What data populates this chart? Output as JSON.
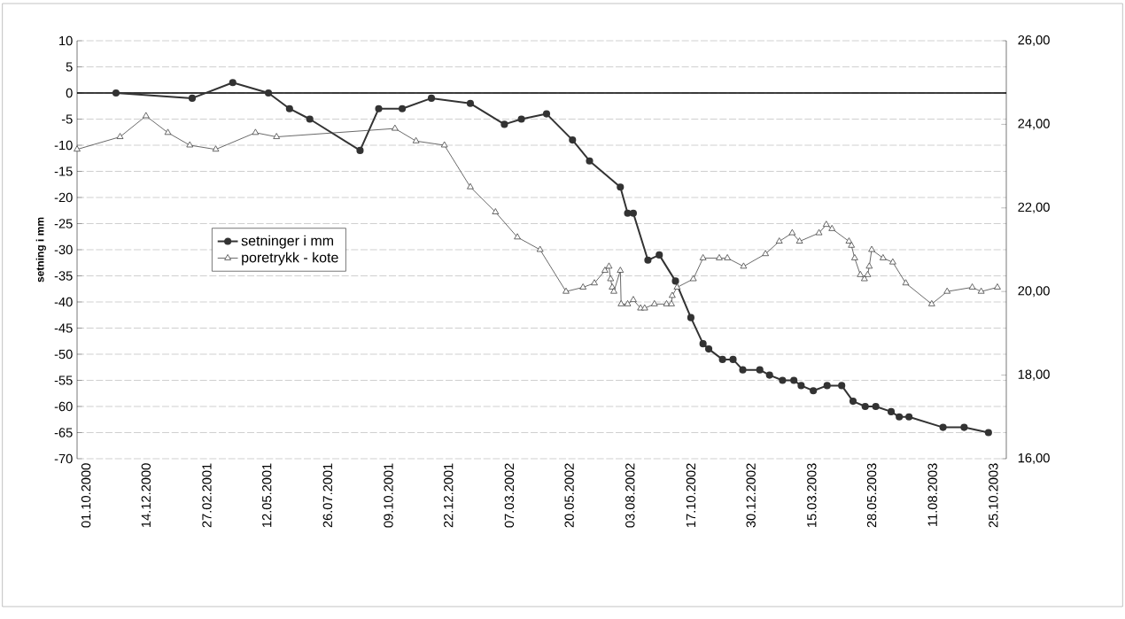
{
  "chart_data": {
    "type": "line",
    "ylabel": "setning i mm",
    "xlim": [
      "2000-09-20",
      "2003-11-10"
    ],
    "xticks": [
      {
        "value": "2000-10-01",
        "label": "01.10.2000"
      },
      {
        "value": "2000-12-14",
        "label": "14.12.2000"
      },
      {
        "value": "2001-02-27",
        "label": "27.02.2001"
      },
      {
        "value": "2001-05-12",
        "label": "12.05.2001"
      },
      {
        "value": "2001-07-26",
        "label": "26.07.2001"
      },
      {
        "value": "2001-10-09",
        "label": "09.10.2001"
      },
      {
        "value": "2001-12-22",
        "label": "22.12.2001"
      },
      {
        "value": "2002-03-07",
        "label": "07.03.2002"
      },
      {
        "value": "2002-05-20",
        "label": "20.05.2002"
      },
      {
        "value": "2002-08-03",
        "label": "03.08.2002"
      },
      {
        "value": "2002-10-17",
        "label": "17.10.2002"
      },
      {
        "value": "2002-12-30",
        "label": "30.12.2002"
      },
      {
        "value": "2003-03-15",
        "label": "15.03.2003"
      },
      {
        "value": "2003-05-28",
        "label": "28.05.2003"
      },
      {
        "value": "2003-08-11",
        "label": "11.08.2003"
      },
      {
        "value": "2003-10-25",
        "label": "25.10.2003"
      }
    ],
    "ylim": [
      -70,
      10
    ],
    "yticks": [
      -70,
      -65,
      -60,
      -55,
      -50,
      -45,
      -40,
      -35,
      -30,
      -25,
      -20,
      -15,
      -10,
      -5,
      0,
      5,
      10
    ],
    "y2lim": [
      16,
      26
    ],
    "y2ticks": [
      {
        "value": 16,
        "label": "16,00"
      },
      {
        "value": 18,
        "label": "18,00"
      },
      {
        "value": 20,
        "label": "20,00"
      },
      {
        "value": 22,
        "label": "22,00"
      },
      {
        "value": 24,
        "label": "24,00"
      },
      {
        "value": 26,
        "label": "26,00"
      }
    ],
    "grid": "y",
    "legend": "left",
    "ref_lines": [
      {
        "axis": "y",
        "value": 0,
        "color": "#000000"
      }
    ],
    "series": [
      {
        "name": "setninger i mm",
        "color": "#333333",
        "marker": "circle",
        "x": [
          "2000-11-07",
          "2001-02-09",
          "2001-03-31",
          "2001-05-14",
          "2001-06-09",
          "2001-07-04",
          "2001-09-04",
          "2001-09-27",
          "2001-10-26",
          "2001-12-01",
          "2002-01-18",
          "2002-03-01",
          "2002-03-22",
          "2002-04-22",
          "2002-05-24",
          "2002-06-14",
          "2002-07-22",
          "2002-07-31",
          "2002-08-07",
          "2002-08-25",
          "2002-09-08",
          "2002-09-28",
          "2002-10-17",
          "2002-11-01",
          "2002-11-08",
          "2002-11-25",
          "2002-12-08",
          "2002-12-20",
          "2003-01-10",
          "2003-01-22",
          "2003-02-07",
          "2003-02-21",
          "2003-03-02",
          "2003-03-17",
          "2003-04-03",
          "2003-04-21",
          "2003-05-05",
          "2003-05-20",
          "2003-06-02",
          "2003-06-21",
          "2003-07-01",
          "2003-07-13",
          "2003-08-24",
          "2003-09-19",
          "2003-10-19"
        ],
        "values": [
          0,
          -1,
          2,
          0,
          -3,
          -5,
          -11,
          -3,
          -3,
          -1,
          -2,
          -6,
          -5,
          -4,
          -9,
          -13,
          -18,
          -23,
          -23,
          -32,
          -31,
          -36,
          -43,
          -48,
          -49,
          -51,
          -51,
          -53,
          -53,
          -54,
          -55,
          -55,
          -56,
          -57,
          -56,
          -56,
          -59,
          -60,
          -60,
          -61,
          -62,
          -62,
          -64,
          -64,
          -65
        ]
      },
      {
        "name": "poretrykk - kote",
        "color": "#444444",
        "marker": "triangle",
        "axis": "y2",
        "x": [
          "2000-09-20",
          "2000-11-12",
          "2000-12-14",
          "2001-01-10",
          "2001-02-06",
          "2001-03-10",
          "2001-04-28",
          "2001-05-24",
          "2001-10-17",
          "2001-11-12",
          "2001-12-17",
          "2002-01-18",
          "2002-02-18",
          "2002-03-17",
          "2002-04-14",
          "2002-05-16",
          "2002-06-06",
          "2002-06-20",
          "2002-07-03",
          "2002-07-08",
          "2002-07-10",
          "2002-07-12",
          "2002-07-14",
          "2002-07-22",
          "2002-07-23",
          "2002-07-31",
          "2002-08-07",
          "2002-08-16",
          "2002-08-21",
          "2002-09-02",
          "2002-09-17",
          "2002-09-23",
          "2002-09-24",
          "2002-09-30",
          "2002-10-20",
          "2002-11-01",
          "2002-11-21",
          "2002-12-01",
          "2002-12-21",
          "2003-01-17",
          "2003-02-03",
          "2003-02-19",
          "2003-02-28",
          "2003-03-24",
          "2003-04-02",
          "2003-04-09",
          "2003-04-30",
          "2003-05-03",
          "2003-05-07",
          "2003-05-14",
          "2003-05-19",
          "2003-05-23",
          "2003-05-25",
          "2003-05-28",
          "2003-06-11",
          "2003-06-23",
          "2003-07-09",
          "2003-08-10",
          "2003-08-29",
          "2003-09-29",
          "2003-10-10",
          "2003-10-30"
        ],
        "values": [
          23.4,
          23.7,
          24.2,
          23.8,
          23.5,
          23.4,
          23.8,
          23.7,
          23.9,
          23.6,
          23.5,
          22.5,
          21.9,
          21.3,
          21.0,
          20.0,
          20.1,
          20.2,
          20.5,
          20.6,
          20.3,
          20.1,
          20.0,
          20.5,
          19.7,
          19.7,
          19.8,
          19.6,
          19.6,
          19.7,
          19.7,
          19.7,
          19.9,
          20.1,
          20.3,
          20.8,
          20.8,
          20.8,
          20.6,
          20.9,
          21.2,
          21.4,
          21.2,
          21.4,
          21.6,
          21.5,
          21.2,
          21.1,
          20.8,
          20.4,
          20.3,
          20.4,
          20.6,
          21.0,
          20.8,
          20.7,
          20.2,
          19.7,
          20.0,
          20.1,
          20.0,
          20.1
        ]
      }
    ]
  }
}
